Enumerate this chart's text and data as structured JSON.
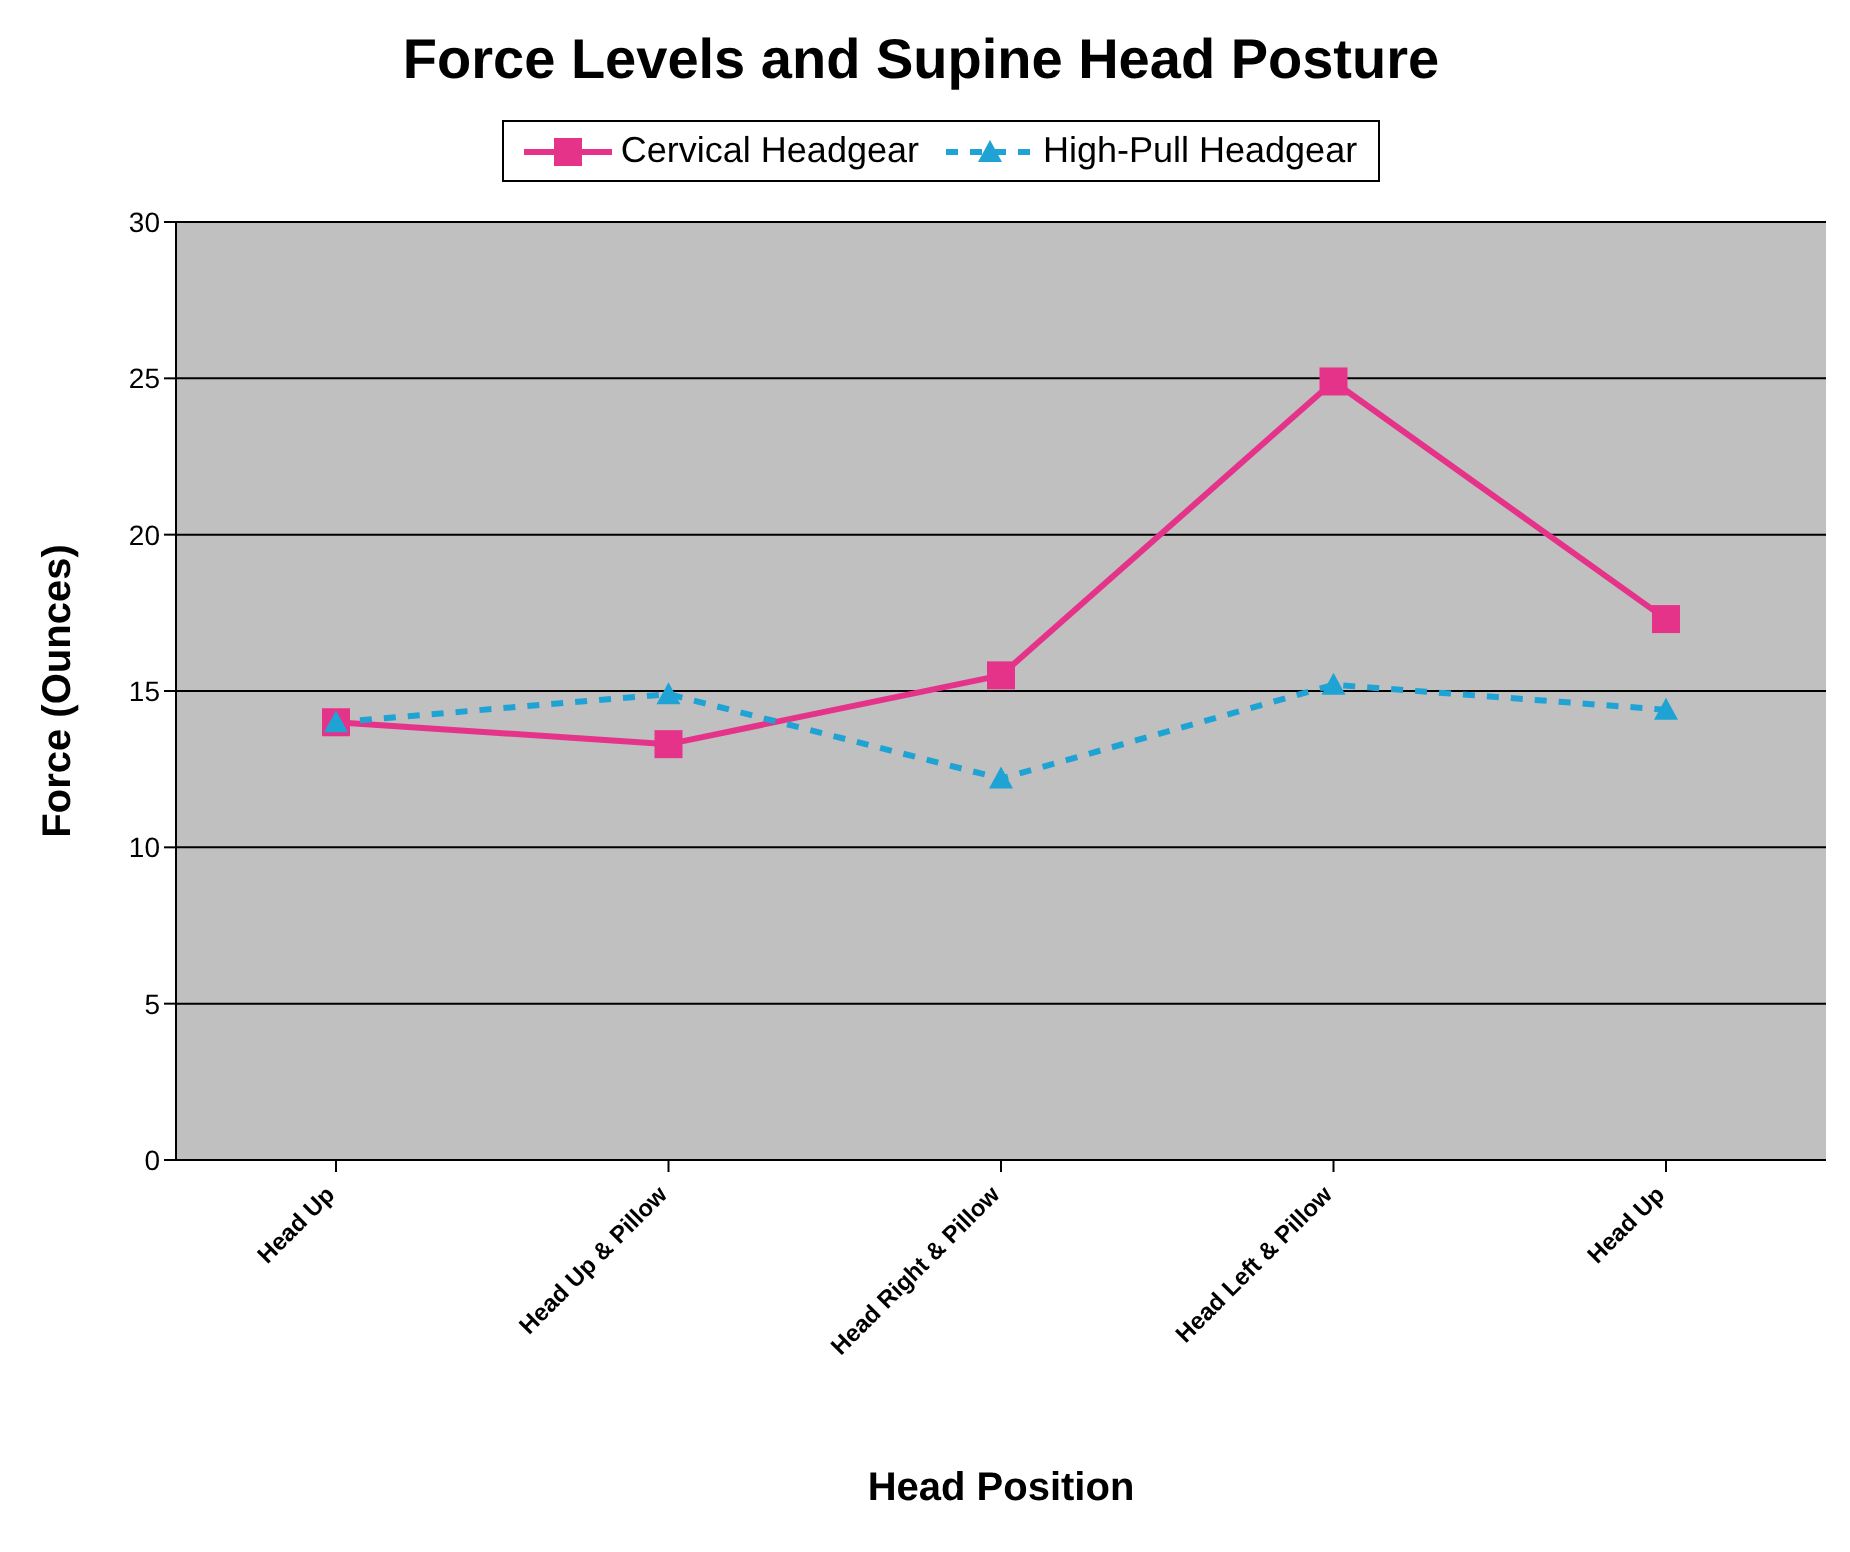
{
  "chart_data": {
    "type": "line",
    "title": "Force Levels and Supine Head Posture",
    "xlabel": "Head Position",
    "ylabel": "Force (Ounces)",
    "categories": [
      "Head Up",
      "Head Up & Pillow",
      "Head Right & Pillow",
      "Head Left & Pillow",
      "Head Up"
    ],
    "series": [
      {
        "name": "Cervical Headgear",
        "color": "#e5338a",
        "values": [
          14.0,
          13.3,
          15.5,
          24.9,
          17.3
        ],
        "marker": "square",
        "line_style": "solid"
      },
      {
        "name": "High-Pull Headgear",
        "color": "#1fa3d4",
        "values": [
          14.0,
          14.9,
          12.2,
          15.2,
          14.4
        ],
        "marker": "triangle",
        "line_style": "dashed"
      }
    ],
    "ylim": [
      0,
      30
    ],
    "yticks": [
      0,
      5,
      10,
      15,
      20,
      25,
      30
    ],
    "grid": "y",
    "legend": "top"
  }
}
